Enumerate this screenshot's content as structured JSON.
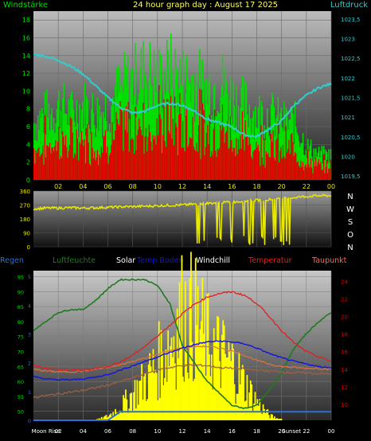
{
  "header": {
    "title": "24 hour graph day : August 17 2025",
    "left_label": "Windstärke",
    "right_label": "Luftdruck"
  },
  "colors": {
    "wind_gust": "#00e000",
    "wind_avg": "#e00000",
    "pressure": "#33cccc",
    "direction": "#e8e800",
    "humidity": "#1f7a1f",
    "solar": "#ffff00",
    "temp_soil": "#1414e0",
    "windchill": "#e07040",
    "temperature": "#e02020",
    "dewpoint": "#a06040",
    "rain": "#2b6fd6",
    "axis_green": "#00e000",
    "axis_cyan": "#33cccc",
    "axis_red": "#e00000",
    "axis_blue": "#2b6fd6"
  },
  "chart_data": [
    {
      "type": "bar",
      "title": "24 hour graph day : August 17 2025",
      "x_ticks": [
        "02",
        "04",
        "06",
        "08",
        "10",
        "12",
        "14",
        "16",
        "18",
        "20",
        "22",
        "00"
      ],
      "y_left": {
        "label": "Windstärke",
        "ticks": [
          "0",
          "2",
          "4",
          "6",
          "8",
          "10",
          "12",
          "14",
          "16",
          "18"
        ],
        "ylim": [
          0,
          19
        ]
      },
      "y_right": {
        "label": "Luftdruck",
        "ticks": [
          "1019,5",
          "1020",
          "1020,5",
          "1021",
          "1021,5",
          "1022",
          "1022,5",
          "1023",
          "1023,5"
        ],
        "ylim": [
          1019.4,
          1023.7
        ]
      },
      "series": [
        {
          "name": "Windstärke",
          "values_hourly_gust": [
            7,
            8,
            9,
            8,
            9,
            8,
            9,
            11,
            12,
            13,
            12,
            13,
            12,
            12,
            11,
            12,
            10,
            9,
            8,
            8,
            7,
            7,
            4,
            3
          ]
        },
        {
          "name": "Luftdruck",
          "values_hourly": [
            1022.6,
            1022.55,
            1022.45,
            1022.3,
            1022.1,
            1021.8,
            1021.5,
            1021.25,
            1021.1,
            1021.15,
            1021.3,
            1021.35,
            1021.3,
            1021.15,
            1020.95,
            1020.85,
            1020.75,
            1020.55,
            1020.5,
            1020.7,
            1020.9,
            1021.3,
            1021.55,
            1021.75,
            1021.85
          ]
        }
      ],
      "grid": true
    },
    {
      "type": "scatter",
      "x_ticks": [
        "02",
        "04",
        "06",
        "08",
        "10",
        "12",
        "14",
        "16",
        "18",
        "20",
        "22",
        "00"
      ],
      "y_left_ticks": [
        "0",
        "90",
        "180",
        "270",
        "360"
      ],
      "y_right_ticks": [
        "N",
        "W",
        "S",
        "O",
        "N"
      ],
      "ylim": [
        0,
        360
      ],
      "series": [
        {
          "name": "wind direction",
          "values_hourly": [
            245,
            250,
            250,
            252,
            250,
            252,
            255,
            258,
            260,
            262,
            265,
            268,
            270,
            275,
            280,
            285,
            290,
            295,
            300,
            305,
            310,
            318,
            325,
            330
          ]
        }
      ],
      "grid": true
    },
    {
      "type": "line",
      "legend": [
        "Regen",
        "Luftfeuchte",
        "Solar",
        "Temp Boden",
        "Windchill",
        "Temperatur",
        "Taupunkt"
      ],
      "x_ticks": [
        "Moon Rise",
        "02",
        "04",
        "06",
        "08",
        "10",
        "12",
        "14",
        "16",
        "18",
        "20",
        "22",
        "Sunset",
        "00"
      ],
      "y_left_blue_ticks": [
        "0",
        "1",
        "2",
        "3",
        "4",
        "5"
      ],
      "y_left_green_ticks": [
        "50",
        "55",
        "60",
        "65",
        "70",
        "75",
        "80",
        "85",
        "90",
        "95"
      ],
      "y_right_ticks": [
        "10",
        "12",
        "14",
        "16",
        "18",
        "20",
        "22",
        "24"
      ],
      "series": [
        {
          "name": "Luftfeuchte",
          "values_hourly": [
            77,
            80,
            83,
            84,
            84,
            87,
            91,
            94,
            94,
            94,
            92,
            86,
            72,
            66,
            60,
            56,
            52,
            51,
            52,
            57,
            63,
            71,
            76,
            80,
            83
          ]
        },
        {
          "name": "Temperatur",
          "values_hourly": [
            14.5,
            14.1,
            14.0,
            13.9,
            13.9,
            14.1,
            14.3,
            14.8,
            15.6,
            16.6,
            17.8,
            19.0,
            20.3,
            21.4,
            22.2,
            22.6,
            22.8,
            22.4,
            21.5,
            20.0,
            18.4,
            17.0,
            16.0,
            15.4,
            14.9
          ]
        },
        {
          "name": "Temp Boden",
          "values_hourly": [
            13.2,
            12.9,
            12.8,
            12.8,
            12.9,
            13.1,
            13.4,
            13.9,
            14.4,
            14.9,
            15.4,
            15.9,
            16.4,
            16.8,
            17.1,
            17.2,
            17.1,
            16.9,
            16.4,
            15.8,
            15.3,
            14.9,
            14.6,
            14.3,
            14.2
          ]
        },
        {
          "name": "Windchill",
          "values_hourly": [
            14.0,
            13.8,
            13.7,
            13.7,
            13.8,
            14.0,
            14.2,
            14.5,
            14.9,
            15.3,
            15.7,
            16.1,
            16.4,
            16.6,
            16.6,
            16.4,
            16.1,
            15.6,
            15.0,
            14.6,
            14.3,
            14.2,
            14.1,
            14.1,
            14.0
          ]
        },
        {
          "name": "Taupunkt",
          "values_hourly": [
            10.8,
            11.0,
            11.2,
            11.4,
            11.6,
            11.9,
            12.2,
            12.6,
            13.0,
            13.5,
            13.9,
            14.2,
            14.4,
            14.5,
            14.4,
            14.2,
            14.1,
            14.0,
            13.9,
            13.8,
            13.7,
            13.6,
            13.6,
            13.5,
            13.5
          ]
        },
        {
          "name": "Solar",
          "values_hourly": [
            0,
            0,
            0,
            0,
            0,
            0,
            0.2,
            0.6,
            1.2,
            1.8,
            2.6,
            3.6,
            4.8,
            4.5,
            3.5,
            3.0,
            2.5,
            1.6,
            0.8,
            0.2,
            0,
            0,
            0,
            0,
            0
          ]
        },
        {
          "name": "Regen",
          "values_hourly": [
            0,
            0,
            0,
            0,
            0,
            0,
            0,
            0.3,
            0.3,
            0.3,
            0.3,
            0.3,
            0.3,
            0.3,
            0.3,
            0.3,
            0.3,
            0.3,
            0.3,
            0.3,
            0.3,
            0.3,
            0.3,
            0.3,
            0.3
          ]
        }
      ],
      "grid": true
    }
  ]
}
